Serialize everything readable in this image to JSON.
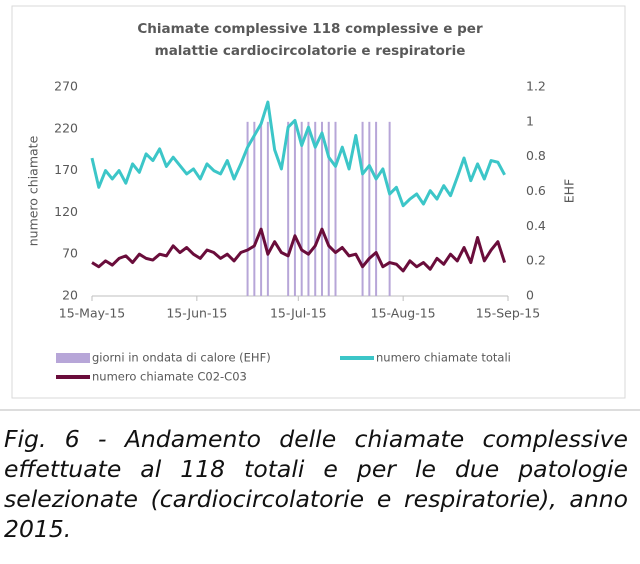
{
  "chart_data": {
    "type": "line",
    "title": "Chiamate complessive 118 complessive e per malattie cardiocircolatorie e respiratorie",
    "ylabel": "numero chiamate",
    "y2label": "EHF",
    "x": [
      "2015-05-15",
      "2015-05-17",
      "2015-05-19",
      "2015-05-21",
      "2015-05-23",
      "2015-05-25",
      "2015-05-27",
      "2015-05-29",
      "2015-05-31",
      "2015-06-02",
      "2015-06-04",
      "2015-06-06",
      "2015-06-08",
      "2015-06-10",
      "2015-06-12",
      "2015-06-14",
      "2015-06-16",
      "2015-06-18",
      "2015-06-20",
      "2015-06-22",
      "2015-06-24",
      "2015-06-26",
      "2015-06-28",
      "2015-06-30",
      "2015-07-02",
      "2015-07-04",
      "2015-07-06",
      "2015-07-08",
      "2015-07-10",
      "2015-07-12",
      "2015-07-14",
      "2015-07-16",
      "2015-07-18",
      "2015-07-20",
      "2015-07-22",
      "2015-07-24",
      "2015-07-26",
      "2015-07-28",
      "2015-07-30",
      "2015-08-01",
      "2015-08-03",
      "2015-08-05",
      "2015-08-07",
      "2015-08-09",
      "2015-08-11",
      "2015-08-13",
      "2015-08-15",
      "2015-08-17",
      "2015-08-19",
      "2015-08-21",
      "2015-08-23",
      "2015-08-25",
      "2015-08-27",
      "2015-08-29",
      "2015-08-31",
      "2015-09-02",
      "2015-09-04",
      "2015-09-06",
      "2015-09-08",
      "2015-09-10",
      "2015-09-12",
      "2015-09-14"
    ],
    "xlim": [
      "2015-05-15",
      "2015-09-15"
    ],
    "xticks": [
      {
        "value": "2015-05-15",
        "label": "15-May-15"
      },
      {
        "value": "2015-06-15",
        "label": "15-Jun-15"
      },
      {
        "value": "2015-07-15",
        "label": "15-Jul-15"
      },
      {
        "value": "2015-08-15",
        "label": "15-Aug-15"
      },
      {
        "value": "2015-09-15",
        "label": "15-Sep-15"
      }
    ],
    "ylim": [
      20,
      270
    ],
    "yticks": [
      20,
      70,
      120,
      170,
      220,
      270
    ],
    "y2lim": [
      0,
      1.2
    ],
    "y2ticks": [
      0,
      0.2,
      0.4,
      0.6,
      0.8,
      1,
      1.2
    ],
    "series": [
      {
        "name": "giorni in ondata di calore (EHF)",
        "type": "bar",
        "axis": "y2",
        "color": "#b7a6d8",
        "values": [
          0,
          0,
          0,
          0,
          0,
          0,
          0,
          0,
          0,
          0,
          0,
          0,
          0,
          0,
          0,
          0,
          0,
          0,
          0,
          0,
          0,
          0,
          0,
          1,
          1,
          1,
          1,
          0,
          0,
          1,
          1,
          1,
          1,
          1,
          1,
          1,
          1,
          0,
          0,
          0,
          1,
          1,
          1,
          0,
          1,
          0,
          0,
          0,
          0,
          0,
          0,
          0,
          0,
          0,
          0,
          0,
          0,
          0,
          0,
          0,
          0,
          0
        ]
      },
      {
        "name": "numero chiamate totali",
        "type": "line",
        "color": "#3cc6c8",
        "values": [
          185,
          150,
          170,
          160,
          170,
          155,
          178,
          168,
          190,
          182,
          196,
          175,
          186,
          176,
          166,
          172,
          160,
          178,
          170,
          166,
          182,
          160,
          178,
          198,
          212,
          226,
          252,
          195,
          172,
          222,
          230,
          200,
          222,
          198,
          215,
          186,
          175,
          198,
          172,
          212,
          166,
          176,
          160,
          172,
          142,
          150,
          128,
          136,
          142,
          130,
          146,
          136,
          152,
          140,
          162,
          185,
          158,
          178,
          160,
          182,
          180,
          165
        ]
      },
      {
        "name": "numero chiamate C02-C03",
        "type": "line",
        "color": "#6a0d3b",
        "values": [
          60,
          55,
          62,
          57,
          65,
          68,
          60,
          70,
          65,
          63,
          70,
          68,
          80,
          72,
          78,
          70,
          65,
          75,
          72,
          65,
          70,
          62,
          72,
          75,
          80,
          100,
          70,
          85,
          72,
          68,
          92,
          75,
          70,
          80,
          100,
          80,
          72,
          78,
          68,
          70,
          55,
          65,
          72,
          55,
          60,
          58,
          50,
          62,
          55,
          60,
          52,
          65,
          58,
          70,
          62,
          78,
          60,
          90,
          62,
          75,
          85,
          60
        ]
      }
    ]
  },
  "caption": "Fig. 6 - Andamento delle chiamate complessive effettuate al 118 totali e per le due patologie selezionate (cardiocircolatorie e respiratorie), anno 2015."
}
